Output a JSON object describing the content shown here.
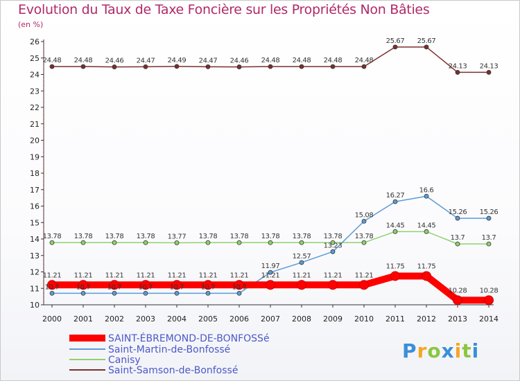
{
  "chart_data": {
    "type": "line",
    "title": "Evolution du Taux de Taxe Foncière sur les Propriétés Non Bâties",
    "ylabel": "(en %)",
    "xlabel": "",
    "ylim": [
      10,
      26
    ],
    "yticks": [
      10,
      11,
      12,
      13,
      14,
      15,
      16,
      17,
      18,
      19,
      20,
      21,
      22,
      23,
      24,
      25,
      26
    ],
    "x": [
      "2000",
      "2001",
      "2002",
      "2003",
      "2004",
      "2005",
      "2006",
      "2007",
      "2008",
      "2009",
      "2010",
      "2011",
      "2012",
      "2013",
      "2014"
    ],
    "grid": false,
    "legend_position": "bottom-left",
    "series": [
      {
        "name": "SAINT-ÉBREMOND-DE-BONFOSSé",
        "color": "#ff0000",
        "style": "thick",
        "values": [
          11.21,
          11.21,
          11.21,
          11.21,
          11.21,
          11.21,
          11.21,
          11.21,
          11.21,
          11.21,
          11.21,
          11.75,
          11.75,
          10.28,
          10.28
        ],
        "labels": [
          "11.21",
          "11.21",
          "11.21",
          "11.21",
          "11.21",
          "11.21",
          "11.21",
          "11.21",
          "11.21",
          "11.21",
          "11.21",
          "11.75",
          "11.75",
          "10.28",
          "10.28"
        ]
      },
      {
        "name": "Saint-Martin-de-Bonfossé",
        "color": "#5b9bd5",
        "style": "thin",
        "values": [
          10.7,
          10.7,
          10.7,
          10.7,
          10.7,
          10.7,
          10.7,
          11.97,
          12.57,
          13.23,
          15.08,
          16.27,
          16.6,
          15.26,
          15.26
        ],
        "labels": [
          "10.7",
          "10.7",
          "10.7",
          "10.7",
          "10.7",
          "10.7",
          "10.7",
          "11.97",
          "12.57",
          "13.23",
          "15.08",
          "16.27",
          "16.6",
          "15.26",
          "15.26"
        ]
      },
      {
        "name": "Canisy",
        "color": "#8fd16e",
        "style": "thin",
        "values": [
          13.78,
          13.78,
          13.78,
          13.78,
          13.77,
          13.78,
          13.78,
          13.78,
          13.78,
          13.78,
          13.78,
          14.45,
          14.45,
          13.7,
          13.7
        ],
        "labels": [
          "13.78",
          "13.78",
          "13.78",
          "13.78",
          "13.77",
          "13.78",
          "13.78",
          "13.78",
          "13.78",
          "13.78",
          "13.78",
          "14.45",
          "14.45",
          "13.7",
          "13.7"
        ]
      },
      {
        "name": "Saint-Samson-de-Bonfossé",
        "color": "#7a2e2e",
        "style": "thin",
        "values": [
          24.48,
          24.48,
          24.46,
          24.47,
          24.49,
          24.47,
          24.46,
          24.48,
          24.48,
          24.48,
          24.48,
          25.67,
          25.67,
          24.13,
          24.13
        ],
        "labels": [
          "24.48",
          "24.48",
          "24.46",
          "24.47",
          "24.49",
          "24.47",
          "24.46",
          "24.48",
          "24.48",
          "24.48",
          "24.48",
          "25.67",
          "25.67",
          "24.13",
          "24.13"
        ]
      }
    ]
  },
  "logo": {
    "letters": [
      "P",
      "r",
      "o",
      "x",
      "i",
      "t",
      "i"
    ],
    "colors": [
      "#3a8fd8",
      "#f5a623",
      "#8cc63f",
      "#3a8fd8",
      "#f5a623",
      "#8cc63f",
      "#3a8fd8"
    ]
  }
}
